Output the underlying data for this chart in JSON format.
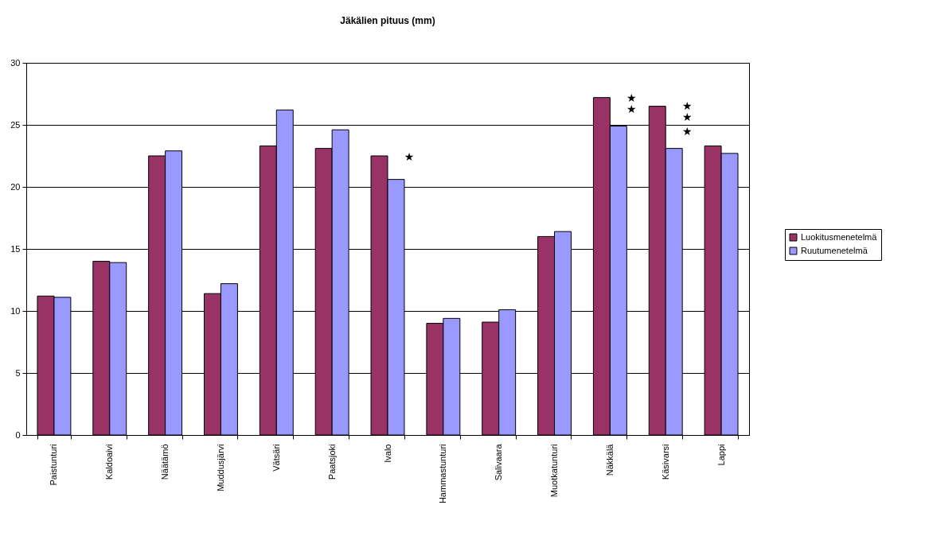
{
  "chart_data": {
    "type": "bar",
    "title": "Jäkälien pituus (mm)",
    "categories": [
      "Paistunturi",
      "Kaldoaivi",
      "Näätämö",
      "Muddusjärvi",
      "Vätsäri",
      "Paatsjoki",
      "Ivalo",
      "Hammastunturi",
      "Salivaara",
      "Muotkatunturi",
      "Näkkälä",
      "Käsivarsi",
      "Lappi"
    ],
    "series": [
      {
        "name": "Luokitusmenetelmä",
        "color": "#993366",
        "values": [
          11.2,
          14.0,
          22.5,
          11.4,
          23.3,
          23.1,
          22.5,
          9.0,
          9.1,
          16.0,
          27.2,
          26.5,
          23.3
        ]
      },
      {
        "name": "Ruutumenetelmä",
        "color": "#9999ff",
        "values": [
          11.1,
          13.9,
          22.9,
          12.2,
          26.2,
          24.6,
          20.6,
          9.4,
          10.1,
          16.4,
          24.9,
          23.1,
          22.7
        ]
      }
    ],
    "ylim": [
      0,
      30
    ],
    "yticks": [
      0,
      5,
      10,
      15,
      20,
      25,
      30
    ],
    "grid": "y",
    "legend": "right",
    "annotations": [
      {
        "text": "★",
        "x": "Ivalo",
        "y": 22.4
      },
      {
        "text": "★",
        "x": "Näkkälä",
        "y": 27.1
      },
      {
        "text": "★",
        "x": "Näkkälä",
        "y": 26.2
      },
      {
        "text": "★",
        "x": "Käsivarsi",
        "y": 26.5
      },
      {
        "text": "★",
        "x": "Käsivarsi",
        "y": 25.6
      },
      {
        "text": "★",
        "x": "Käsivarsi",
        "y": 24.4
      }
    ]
  }
}
